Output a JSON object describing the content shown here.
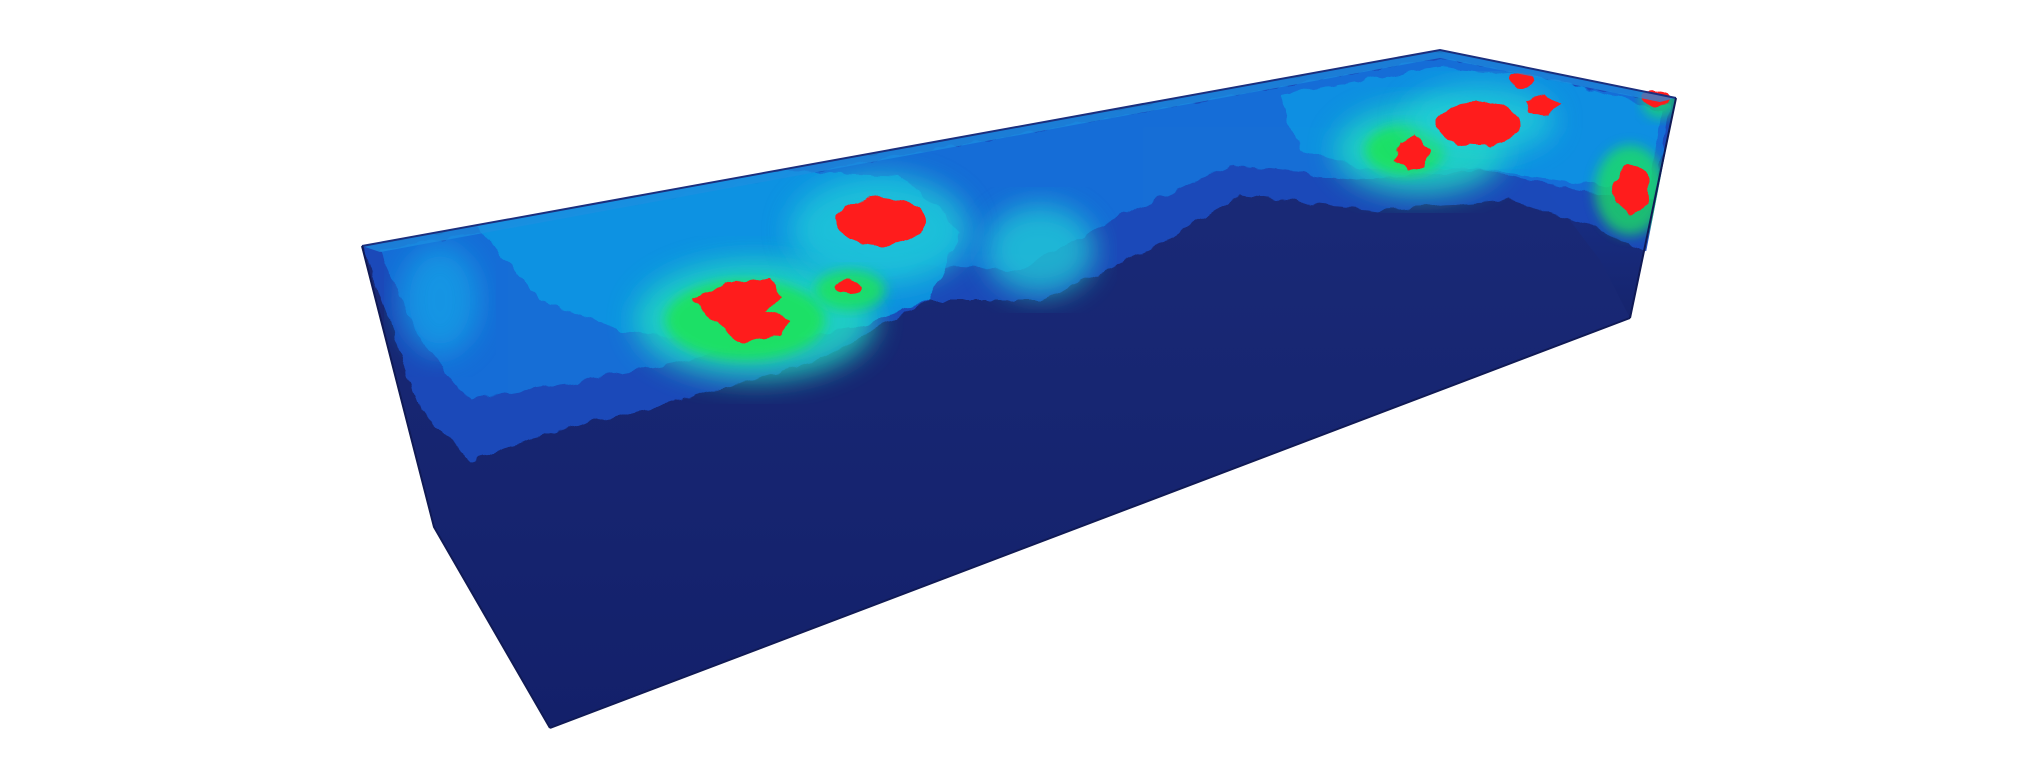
{
  "scene": {
    "background_color": "#ffffff",
    "volume_base_color": "#16246d",
    "colormap": [
      "#16246d",
      "#1f52c4",
      "#0f8fe0",
      "#22d8d0",
      "#18e35a",
      "#ff1a1a"
    ],
    "anomaly_color": "#ff1a1a"
  }
}
